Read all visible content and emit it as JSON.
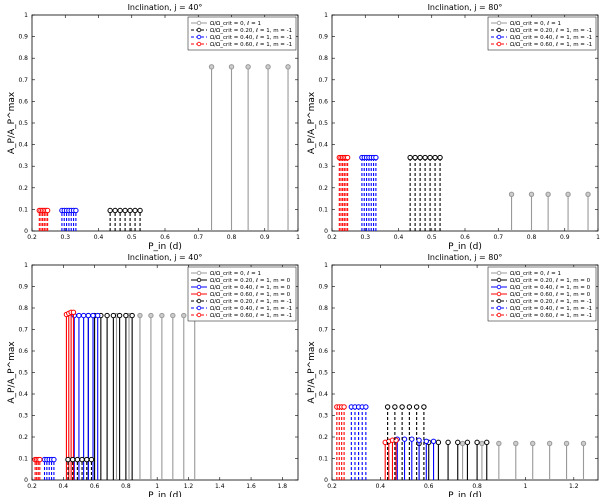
{
  "chart_data": [
    {
      "type": "stem",
      "title": "Inclination, j = 40°",
      "xlabel": "P_in (d)",
      "ylabel": "A_P/A_P^max",
      "xlim": [
        0.2,
        1.0
      ],
      "ylim": [
        0,
        1
      ],
      "xticks": [
        "0.2",
        "0.3",
        "0.4",
        "0.5",
        "0.6",
        "0.7",
        "0.8",
        "0.9",
        "1"
      ],
      "yticks": [
        "0",
        "0.1",
        "0.2",
        "0.3",
        "0.4",
        "0.5",
        "0.6",
        "0.7",
        "0.8",
        "0.9",
        "1"
      ],
      "series": [
        {
          "name": "Ω/Ω_crit = 0, ℓ = 1",
          "color": "#999999",
          "line": "solid",
          "x": [
            0.74,
            0.8,
            0.85,
            0.91,
            0.97
          ],
          "y": [
            0.76,
            0.76,
            0.76,
            0.76,
            0.76
          ]
        },
        {
          "name": "Ω/Ω_crit = 0.20, ℓ = 1, m = -1",
          "color": "#000000",
          "line": "dashed",
          "x": [
            0.435,
            0.45,
            0.465,
            0.48,
            0.495,
            0.51,
            0.525
          ],
          "y": [
            0.095,
            0.095,
            0.095,
            0.095,
            0.095,
            0.095,
            0.095
          ]
        },
        {
          "name": "Ω/Ω_crit = 0.40, ℓ = 1, m = -1",
          "color": "#0000ff",
          "line": "dashed",
          "x": [
            0.29,
            0.297,
            0.304,
            0.311,
            0.318,
            0.325,
            0.332
          ],
          "y": [
            0.095,
            0.095,
            0.095,
            0.095,
            0.095,
            0.095,
            0.095
          ]
        },
        {
          "name": "Ω/Ω_crit = 0.60, ℓ = 1, m = -1",
          "color": "#ff0000",
          "line": "dashed",
          "x": [
            0.222,
            0.227,
            0.232,
            0.237,
            0.242,
            0.247
          ],
          "y": [
            0.095,
            0.095,
            0.095,
            0.095,
            0.095,
            0.095
          ]
        }
      ]
    },
    {
      "type": "stem",
      "title": "Inclination, j = 80°",
      "xlabel": "P_in (d)",
      "ylabel": "A_P/A_P^max",
      "xlim": [
        0.2,
        1.0
      ],
      "ylim": [
        0,
        1
      ],
      "xticks": [
        "0.2",
        "0.3",
        "0.4",
        "0.5",
        "0.6",
        "0.7",
        "0.8",
        "0.9",
        "1"
      ],
      "yticks": [
        "0",
        "0.1",
        "0.2",
        "0.3",
        "0.4",
        "0.5",
        "0.6",
        "0.7",
        "0.8",
        "0.9",
        "1"
      ],
      "series": [
        {
          "name": "Ω/Ω_crit = 0, ℓ = 1",
          "color": "#999999",
          "line": "solid",
          "x": [
            0.74,
            0.8,
            0.85,
            0.91,
            0.97
          ],
          "y": [
            0.17,
            0.17,
            0.17,
            0.17,
            0.17
          ]
        },
        {
          "name": "Ω/Ω_crit = 0.20, ℓ = 1, m = -1",
          "color": "#000000",
          "line": "dashed",
          "x": [
            0.435,
            0.45,
            0.465,
            0.48,
            0.495,
            0.51,
            0.525
          ],
          "y": [
            0.34,
            0.34,
            0.34,
            0.34,
            0.34,
            0.34,
            0.34
          ]
        },
        {
          "name": "Ω/Ω_crit = 0.40, ℓ = 1, m = -1",
          "color": "#0000ff",
          "line": "dashed",
          "x": [
            0.29,
            0.297,
            0.304,
            0.311,
            0.318,
            0.325,
            0.332
          ],
          "y": [
            0.34,
            0.34,
            0.34,
            0.34,
            0.34,
            0.34,
            0.34
          ]
        },
        {
          "name": "Ω/Ω_crit = 0.60, ℓ = 1, m = -1",
          "color": "#ff0000",
          "line": "dashed",
          "x": [
            0.222,
            0.227,
            0.232,
            0.237,
            0.242,
            0.247
          ],
          "y": [
            0.34,
            0.34,
            0.34,
            0.34,
            0.34,
            0.34
          ]
        }
      ]
    },
    {
      "type": "stem",
      "title": "Inclination, j = 40°",
      "xlabel": "P_in (d)",
      "ylabel": "A_P/A_P^max",
      "xlim": [
        0.2,
        1.9
      ],
      "ylim": [
        0,
        1
      ],
      "xticks": [
        "0.2",
        "0.4",
        "0.6",
        "0.8",
        "1",
        "1.2",
        "1.4",
        "1.6",
        "1.8"
      ],
      "yticks": [
        "0",
        "0.1",
        "0.2",
        "0.3",
        "0.4",
        "0.5",
        "0.6",
        "0.7",
        "0.8",
        "0.9",
        "1"
      ],
      "series": [
        {
          "name": "Ω/Ω_crit = 0, ℓ = 1",
          "color": "#999999",
          "line": "solid",
          "x": [
            0.74,
            0.82,
            0.89,
            0.96,
            1.03,
            1.1,
            1.17,
            1.24
          ],
          "y": [
            0.765,
            0.765,
            0.765,
            0.765,
            0.765,
            0.765,
            0.765,
            0.765
          ]
        },
        {
          "name": "Ω/Ω_crit = 0.20, ℓ = 1, m = 0",
          "color": "#000000",
          "line": "solid",
          "x": [
            0.56,
            0.6,
            0.64,
            0.68,
            0.72,
            0.76,
            0.8,
            0.84
          ],
          "y": [
            0.765,
            0.765,
            0.765,
            0.765,
            0.765,
            0.765,
            0.765,
            0.765
          ]
        },
        {
          "name": "Ω/Ω_crit = 0.40, ℓ = 1, m = 0",
          "color": "#0000ff",
          "line": "solid",
          "x": [
            0.47,
            0.5,
            0.53,
            0.56,
            0.59,
            0.62
          ],
          "y": [
            0.765,
            0.765,
            0.765,
            0.765,
            0.765,
            0.765
          ]
        },
        {
          "name": "Ω/Ω_crit = 0.60, ℓ = 1, m = 0",
          "color": "#ff0000",
          "line": "solid",
          "x": [
            0.42,
            0.435,
            0.45,
            0.465
          ],
          "y": [
            0.77,
            0.775,
            0.78,
            0.78
          ]
        },
        {
          "name": "Ω/Ω_crit = 0.20, ℓ = 1, m = -1",
          "color": "#000000",
          "line": "dashed",
          "x": [
            0.43,
            0.46,
            0.49,
            0.52,
            0.55,
            0.58
          ],
          "y": [
            0.095,
            0.095,
            0.095,
            0.095,
            0.095,
            0.095
          ]
        },
        {
          "name": "Ω/Ω_crit = 0.40, ℓ = 1, m = -1",
          "color": "#0000ff",
          "line": "dashed",
          "x": [
            0.28,
            0.295,
            0.31,
            0.325,
            0.34
          ],
          "y": [
            0.095,
            0.095,
            0.095,
            0.095,
            0.095
          ]
        },
        {
          "name": "Ω/Ω_crit = 0.60, ℓ = 1, m = -1",
          "color": "#ff0000",
          "line": "dashed",
          "x": [
            0.22,
            0.23,
            0.24,
            0.25
          ],
          "y": [
            0.095,
            0.095,
            0.095,
            0.095
          ]
        }
      ]
    },
    {
      "type": "stem",
      "title": "Inclination, j = 80°",
      "xlabel": "P_in (d)",
      "ylabel": "A_P/A_P^max",
      "xlim": [
        0.2,
        1.3
      ],
      "ylim": [
        0,
        1
      ],
      "xticks": [
        "0.2",
        "0.4",
        "0.6",
        "0.8",
        "1",
        "1.2"
      ],
      "yticks": [
        "0",
        "0.1",
        "0.2",
        "0.3",
        "0.4",
        "0.5",
        "0.6",
        "0.7",
        "0.8",
        "0.9",
        "1"
      ],
      "series": [
        {
          "name": "Ω/Ω_crit = 0, ℓ = 1",
          "color": "#999999",
          "line": "solid",
          "x": [
            0.74,
            0.82,
            0.89,
            0.96,
            1.03,
            1.1,
            1.17,
            1.24
          ],
          "y": [
            0.17,
            0.17,
            0.17,
            0.17,
            0.17,
            0.17,
            0.17,
            0.17
          ]
        },
        {
          "name": "Ω/Ω_crit = 0.20, ℓ = 1, m = 0",
          "color": "#000000",
          "line": "solid",
          "x": [
            0.56,
            0.6,
            0.64,
            0.68,
            0.72,
            0.76,
            0.8,
            0.84
          ],
          "y": [
            0.17,
            0.175,
            0.175,
            0.175,
            0.175,
            0.175,
            0.175,
            0.175
          ]
        },
        {
          "name": "Ω/Ω_crit = 0.40, ℓ = 1, m = 0",
          "color": "#0000ff",
          "line": "solid",
          "x": [
            0.47,
            0.5,
            0.53,
            0.56,
            0.59,
            0.62
          ],
          "y": [
            0.19,
            0.19,
            0.19,
            0.185,
            0.18,
            0.18
          ]
        },
        {
          "name": "Ω/Ω_crit = 0.60, ℓ = 1, m = 0",
          "color": "#ff0000",
          "line": "solid",
          "x": [
            0.42,
            0.435,
            0.45,
            0.465
          ],
          "y": [
            0.175,
            0.18,
            0.185,
            0.185
          ]
        },
        {
          "name": "Ω/Ω_crit = 0.20, ℓ = 1, m = -1",
          "color": "#000000",
          "line": "dashed",
          "x": [
            0.43,
            0.46,
            0.49,
            0.52,
            0.55,
            0.58
          ],
          "y": [
            0.34,
            0.34,
            0.34,
            0.34,
            0.34,
            0.34
          ]
        },
        {
          "name": "Ω/Ω_crit = 0.40, ℓ = 1, m = -1",
          "color": "#0000ff",
          "line": "dashed",
          "x": [
            0.28,
            0.295,
            0.31,
            0.325,
            0.34
          ],
          "y": [
            0.34,
            0.34,
            0.34,
            0.34,
            0.34
          ]
        },
        {
          "name": "Ω/Ω_crit = 0.60, ℓ = 1, m = -1",
          "color": "#ff0000",
          "line": "dashed",
          "x": [
            0.22,
            0.23,
            0.24,
            0.25
          ],
          "y": [
            0.34,
            0.34,
            0.34,
            0.34
          ]
        }
      ]
    }
  ]
}
